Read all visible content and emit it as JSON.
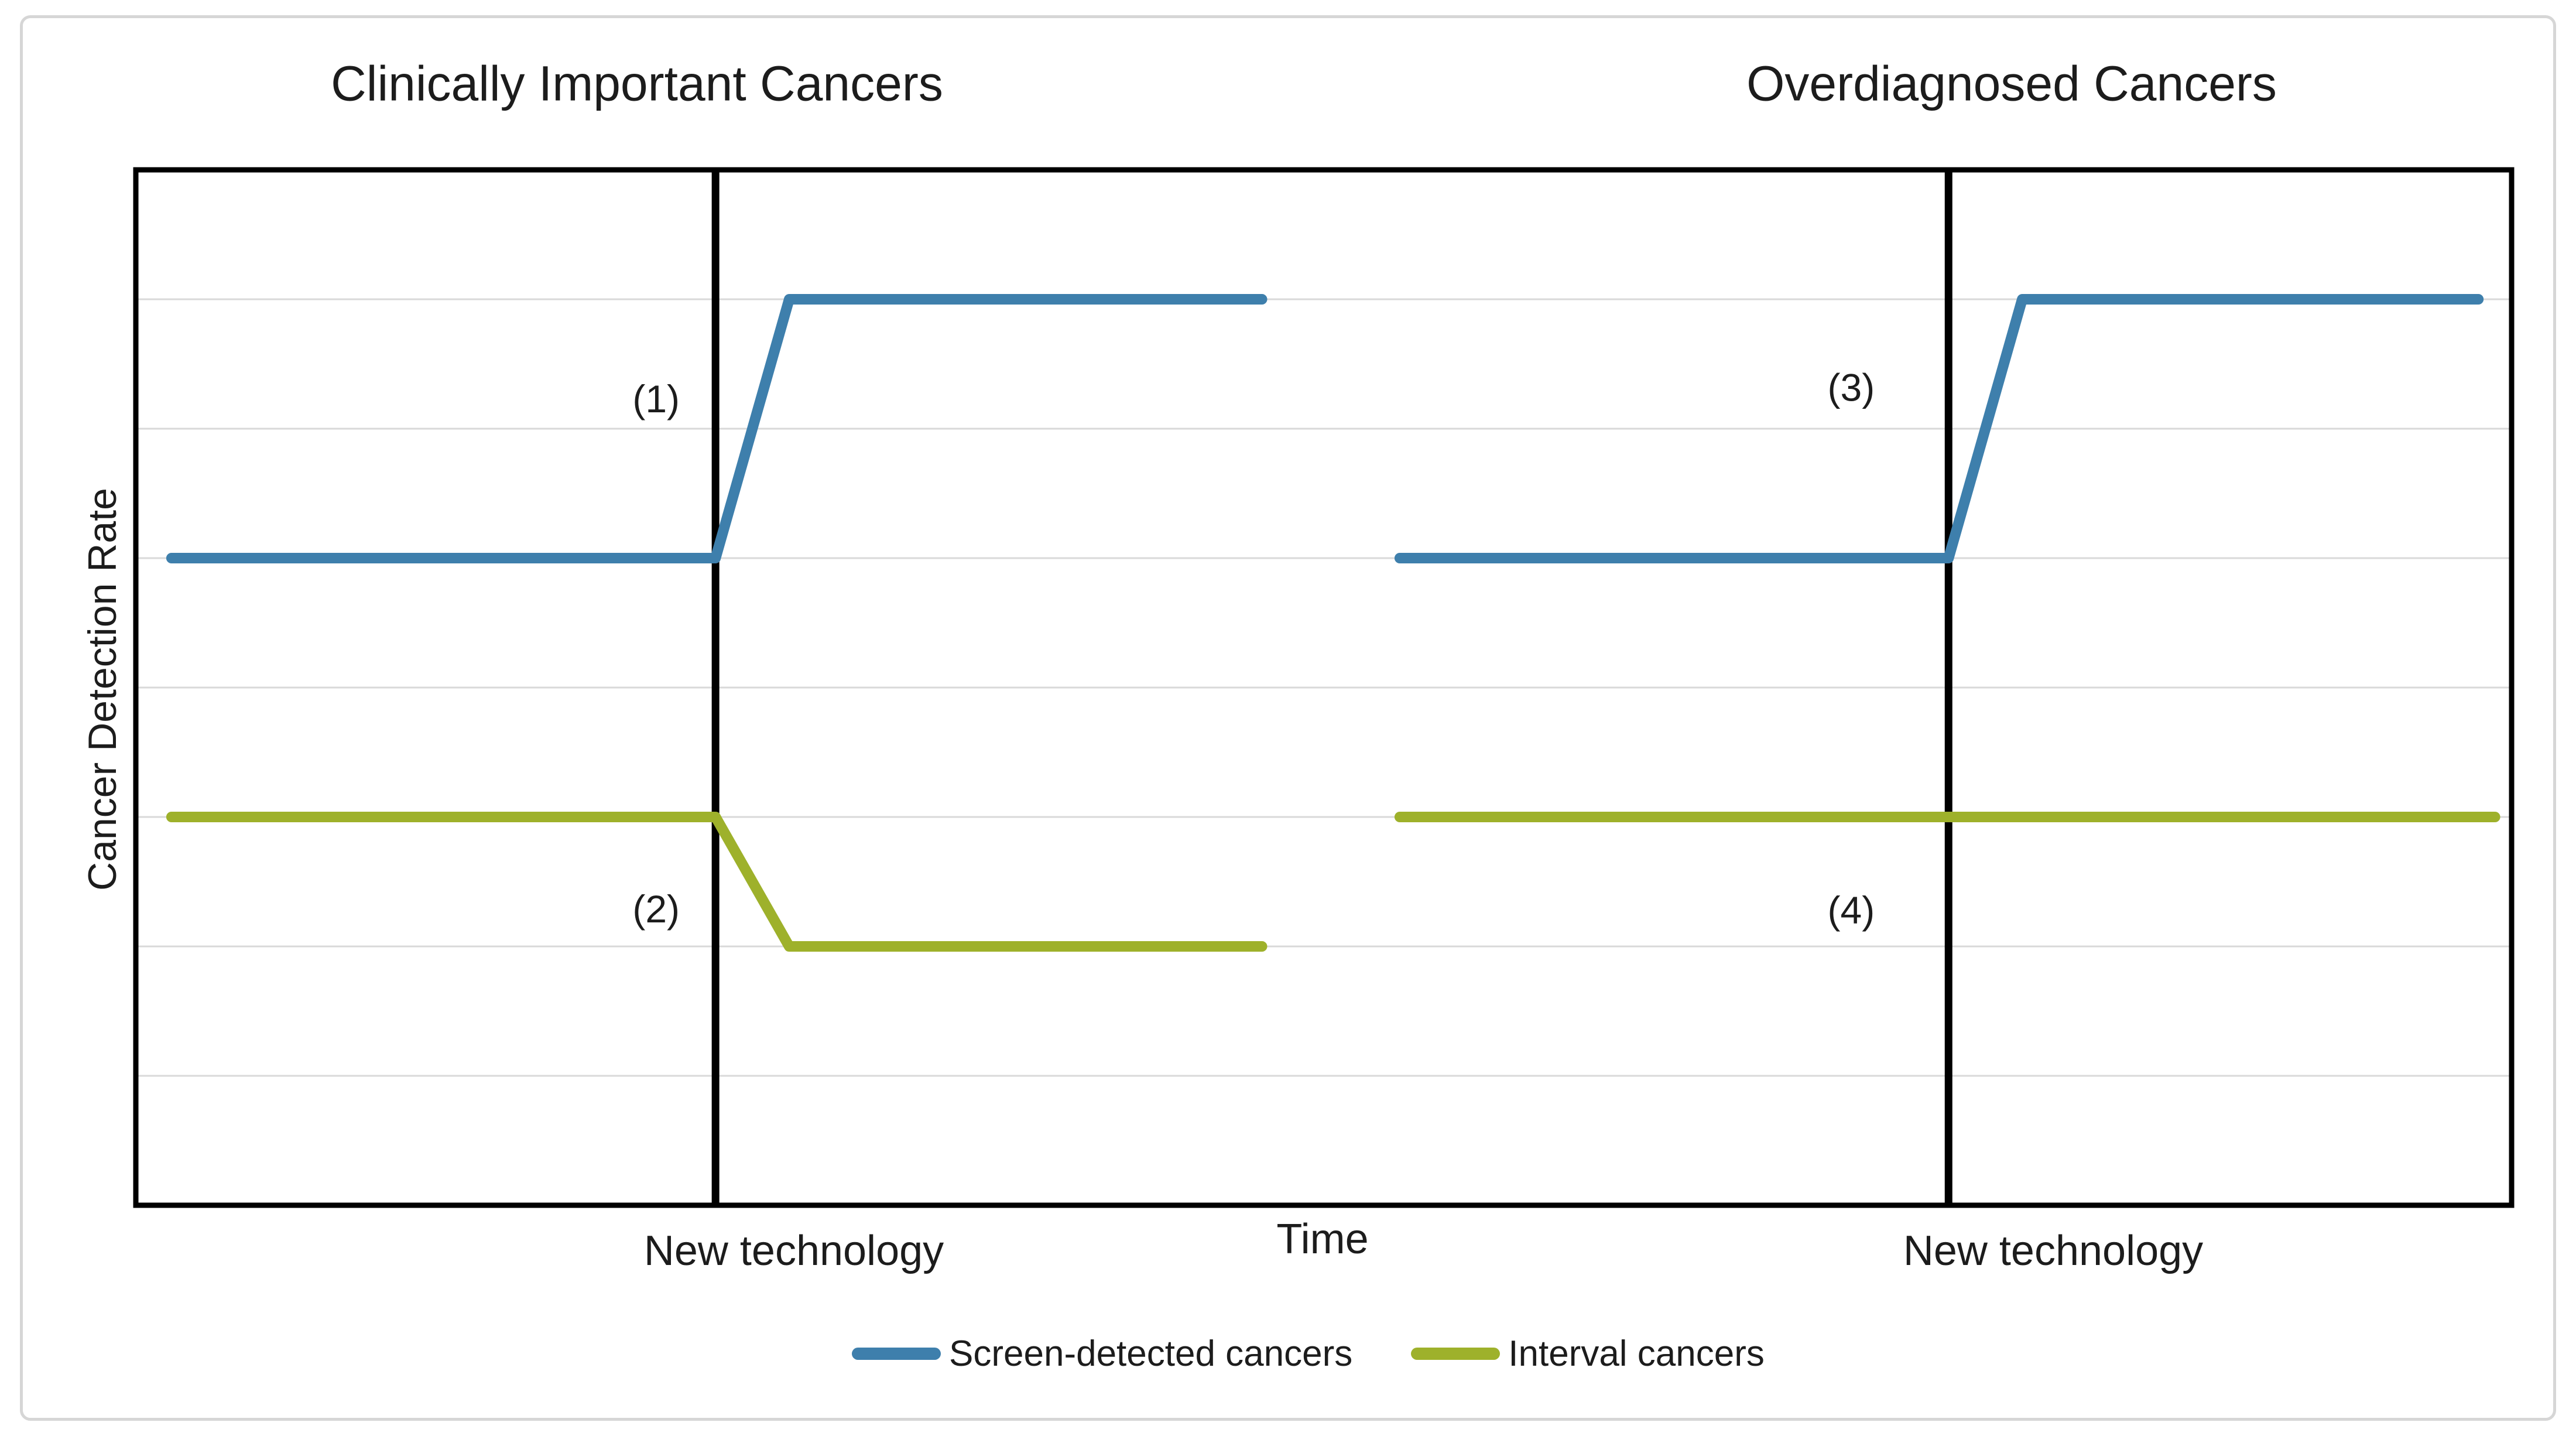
{
  "figure": {
    "titles": {
      "left": "Clinically Important Cancers",
      "right": "Overdiagnosed Cancers"
    },
    "y_axis_label": "Cancer Detection Rate",
    "x_axis_label": "Time",
    "event_labels": {
      "left": "New technology",
      "right": "New technology"
    }
  },
  "colors": {
    "blue": "#3E7FAC",
    "green": "#9EB12B",
    "gridline": "#D9D9D9",
    "axis": "#000000",
    "text": "#1C1C1C",
    "card_border": "#D6D6D6"
  },
  "chart_data": {
    "type": "line",
    "title": "",
    "xlabel": "Time",
    "ylabel": "Cancer Detection Rate",
    "xlim": [
      0,
      100
    ],
    "ylim": [
      0,
      8
    ],
    "grid": "horizontal",
    "gridline_y_values": [
      1,
      2,
      3,
      4,
      5,
      6,
      7
    ],
    "legend_position": "bottom",
    "legend": [
      {
        "label": "Screen-detected cancers",
        "color": "#3E7FAC"
      },
      {
        "label": "Interval cancers",
        "color": "#9EB12B"
      }
    ],
    "panels": [
      {
        "title": "Clinically Important Cancers",
        "event_line_x": 24.4,
        "event_label": "New technology",
        "series": [
          {
            "name": "Screen-detected cancers",
            "color": "#3E7FAC",
            "points": [
              [
                1.5,
                5
              ],
              [
                24.4,
                5
              ],
              [
                27.5,
                7
              ],
              [
                47.4,
                7
              ]
            ]
          },
          {
            "name": "Interval cancers",
            "color": "#9EB12B",
            "points": [
              [
                1.5,
                3
              ],
              [
                24.4,
                3
              ],
              [
                27.5,
                2
              ],
              [
                47.4,
                2
              ]
            ]
          }
        ],
        "annotations": [
          {
            "label": "(1)",
            "x": 21.9,
            "y": 6.23
          },
          {
            "label": "(2)",
            "x": 21.9,
            "y": 2.29
          }
        ]
      },
      {
        "title": "Overdiagnosed Cancers",
        "event_line_x": 76.3,
        "event_label": "New technology",
        "series": [
          {
            "name": "Screen-detected cancers",
            "color": "#3E7FAC",
            "points": [
              [
                53.2,
                5
              ],
              [
                76.3,
                5
              ],
              [
                79.4,
                7
              ],
              [
                98.6,
                7
              ]
            ]
          },
          {
            "name": "Interval cancers",
            "color": "#9EB12B",
            "points": [
              [
                53.2,
                3
              ],
              [
                99.3,
                3
              ]
            ]
          }
        ],
        "annotations": [
          {
            "label": "(3)",
            "x": 72.2,
            "y": 6.32
          },
          {
            "label": "(4)",
            "x": 72.2,
            "y": 2.28
          }
        ]
      }
    ]
  }
}
